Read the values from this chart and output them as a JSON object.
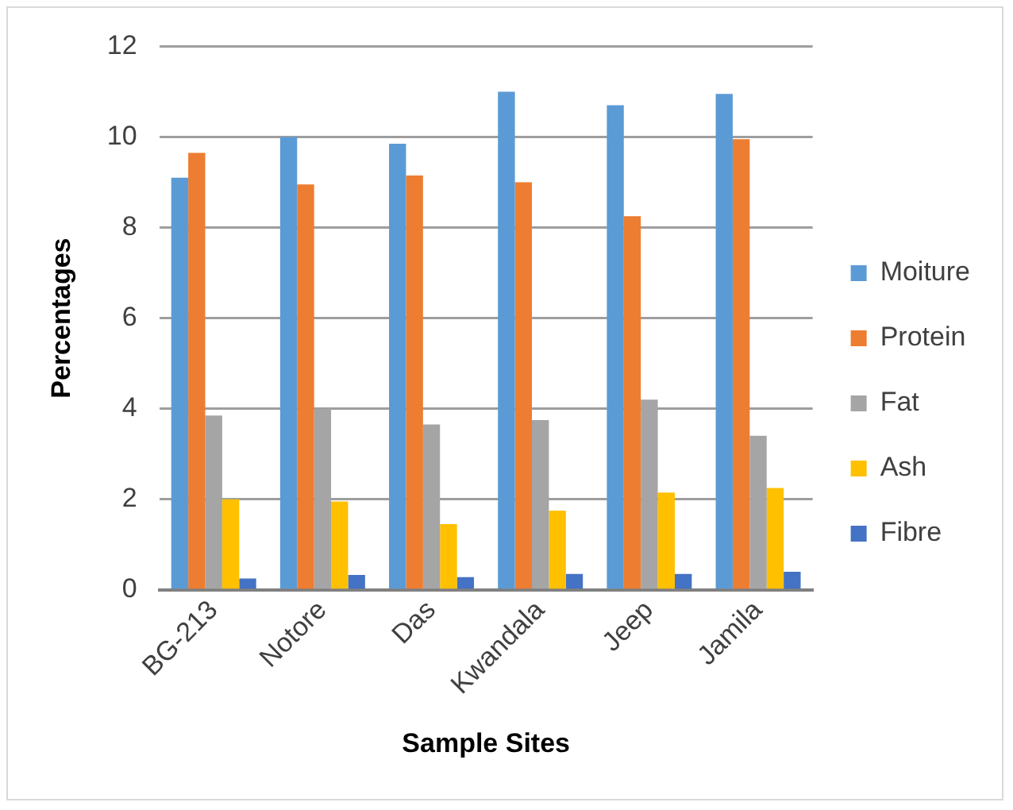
{
  "chart_data": {
    "type": "bar",
    "xlabel": "Sample Sites",
    "ylabel": "Percentages",
    "categories": [
      "BG-213",
      "Notore",
      "Das",
      "Kwandala",
      "Jeep",
      "Jamila"
    ],
    "series": [
      {
        "name": "Moiture",
        "color": "#5b9bd5",
        "values": [
          9.1,
          10.0,
          9.85,
          11.0,
          10.7,
          10.95
        ]
      },
      {
        "name": "Protein",
        "color": "#ed7d31",
        "values": [
          9.65,
          8.95,
          9.15,
          9.0,
          8.25,
          9.95
        ]
      },
      {
        "name": "Fat",
        "color": "#a5a5a5",
        "values": [
          3.85,
          4.0,
          3.65,
          3.75,
          4.2,
          3.4
        ]
      },
      {
        "name": "Ash",
        "color": "#ffc000",
        "values": [
          2.0,
          1.95,
          1.45,
          1.75,
          2.15,
          2.25
        ]
      },
      {
        "name": "Fibre",
        "color": "#4472c4",
        "values": [
          0.25,
          0.33,
          0.28,
          0.35,
          0.35,
          0.4
        ]
      }
    ],
    "ylim": [
      0,
      12
    ],
    "yticks": [
      0,
      2,
      4,
      6,
      8,
      10,
      12
    ],
    "grid": "y",
    "legend": "right"
  }
}
